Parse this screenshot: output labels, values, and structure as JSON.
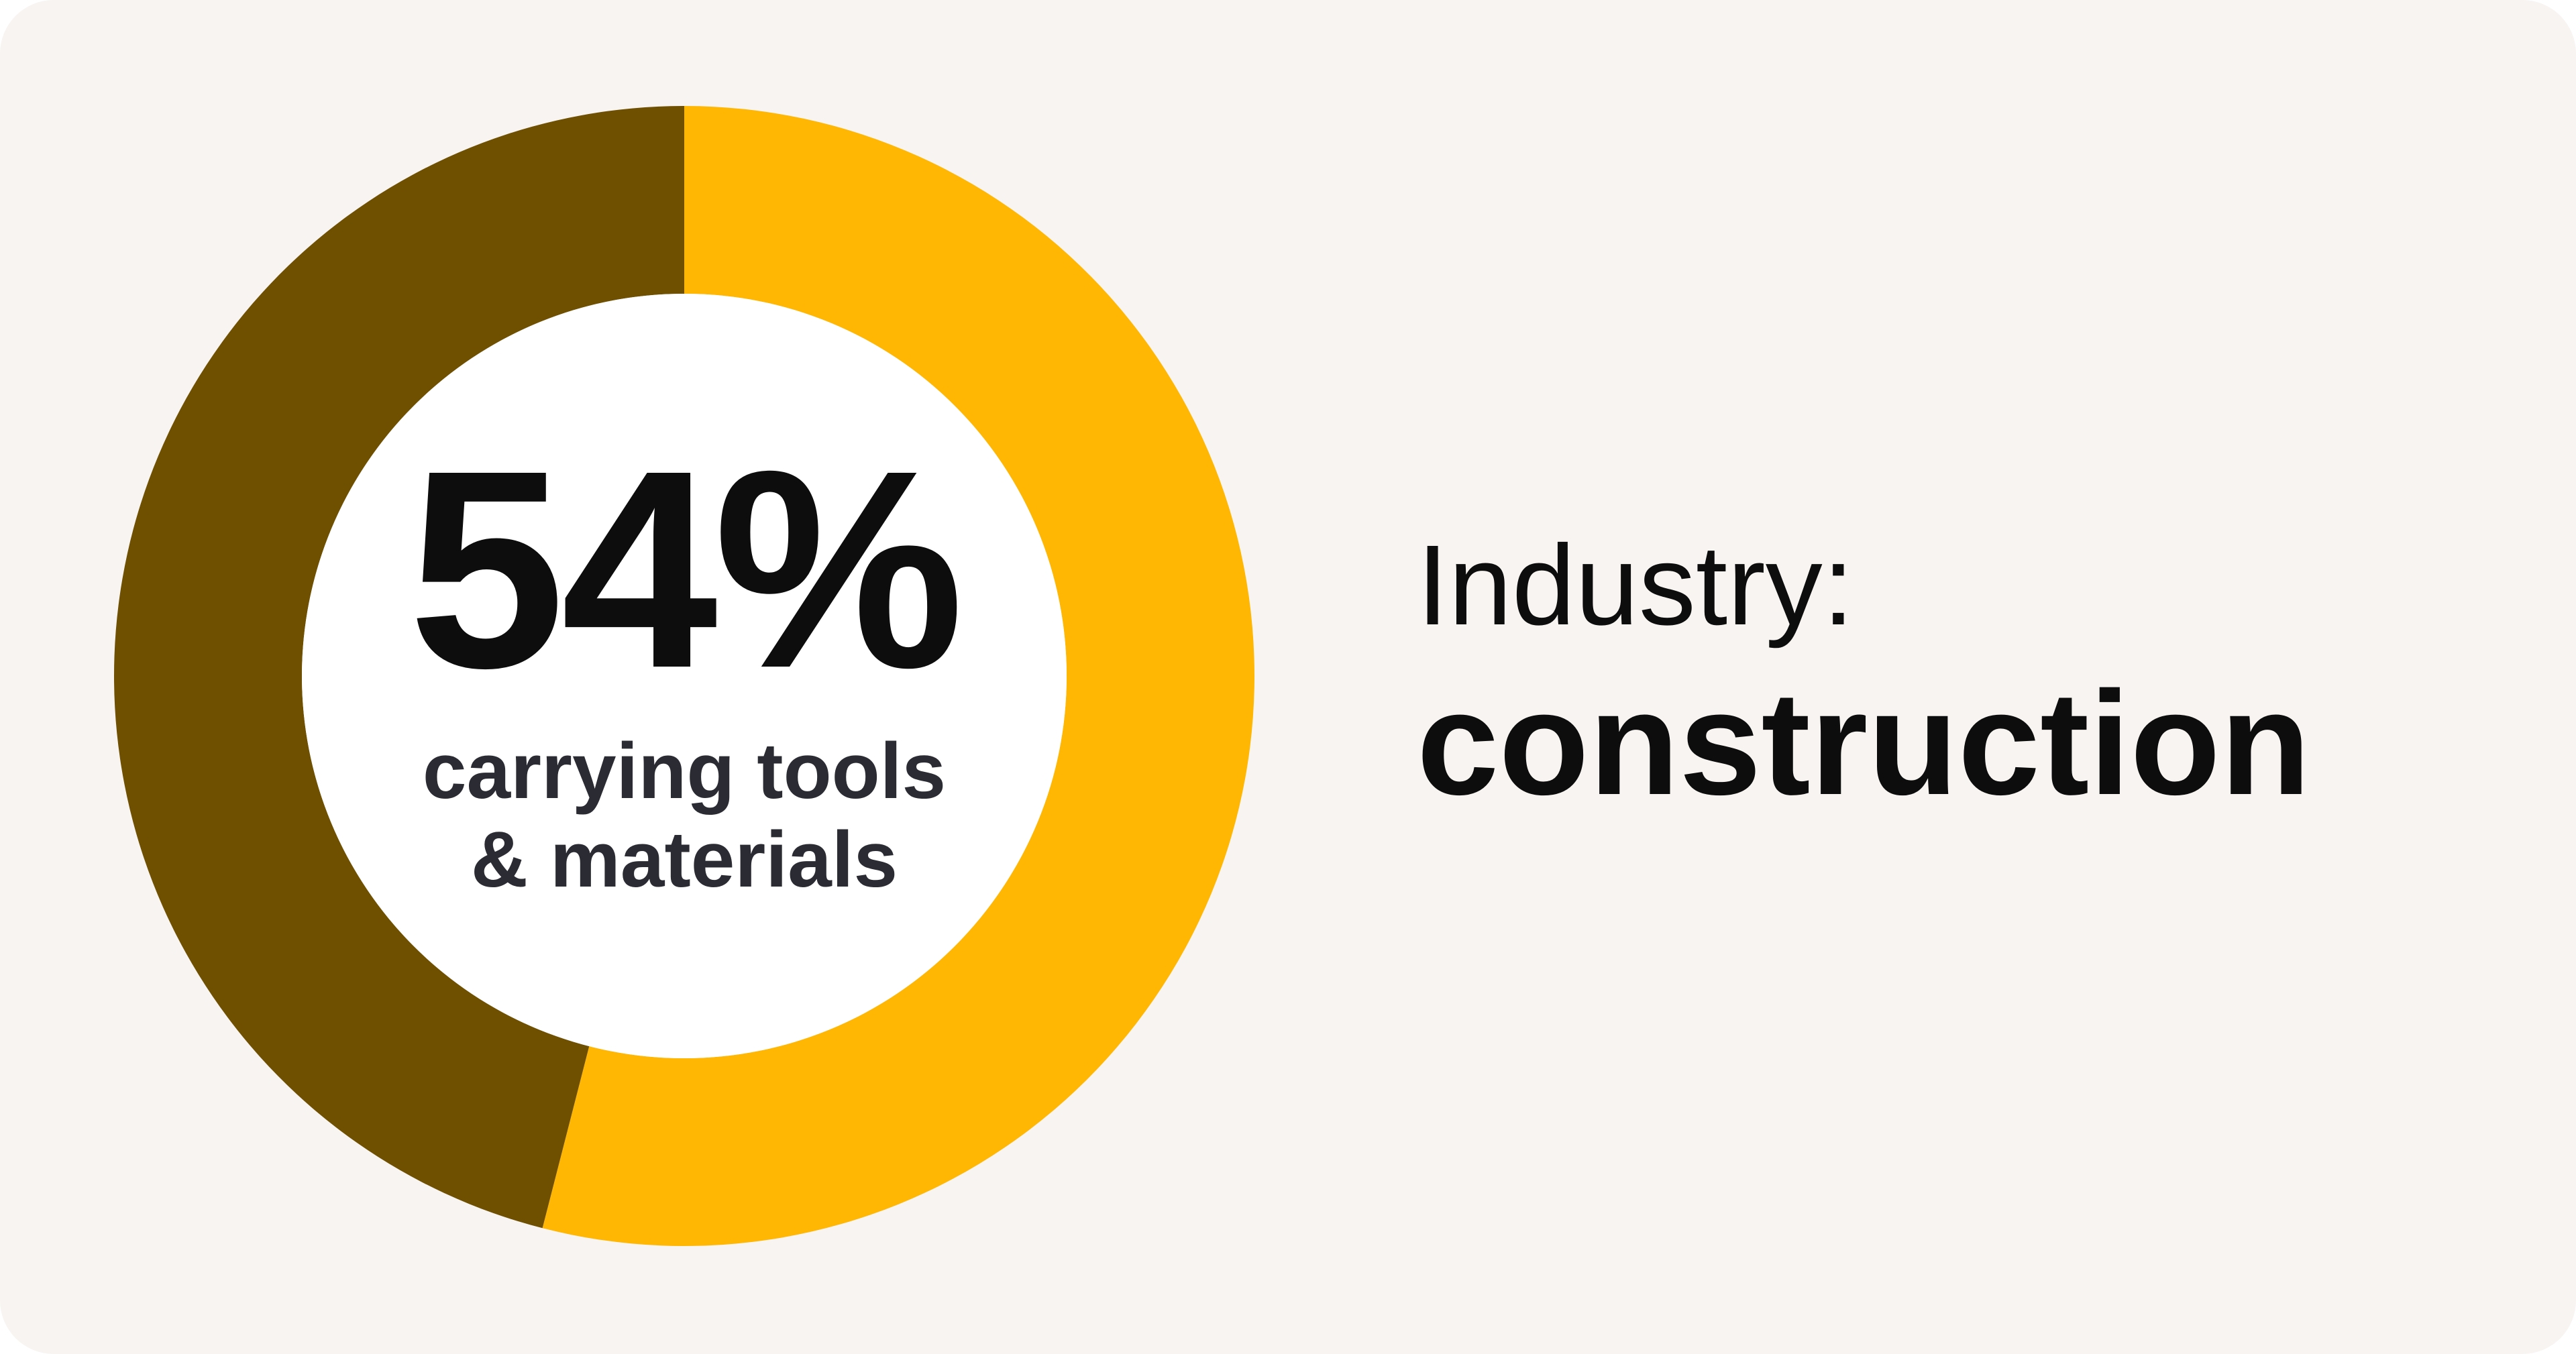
{
  "chart_data": {
    "type": "pie",
    "variant": "donut",
    "slices": [
      {
        "label": "carrying tools & materials",
        "value": 54,
        "color": "#FFB704"
      },
      {
        "label": "",
        "value": 46,
        "color": "#6F4F00"
      }
    ],
    "center_value": "54%",
    "center_caption_line1": "carrying tools",
    "center_caption_line2": "& materials"
  },
  "industry": {
    "label": "Industry:",
    "value": "construction"
  },
  "colors": {
    "background": "#F7F4F1",
    "highlight": "#FFB704",
    "remainder": "#6F4F00",
    "hole": "#FFFFFF",
    "text": "#0D0D0D"
  }
}
